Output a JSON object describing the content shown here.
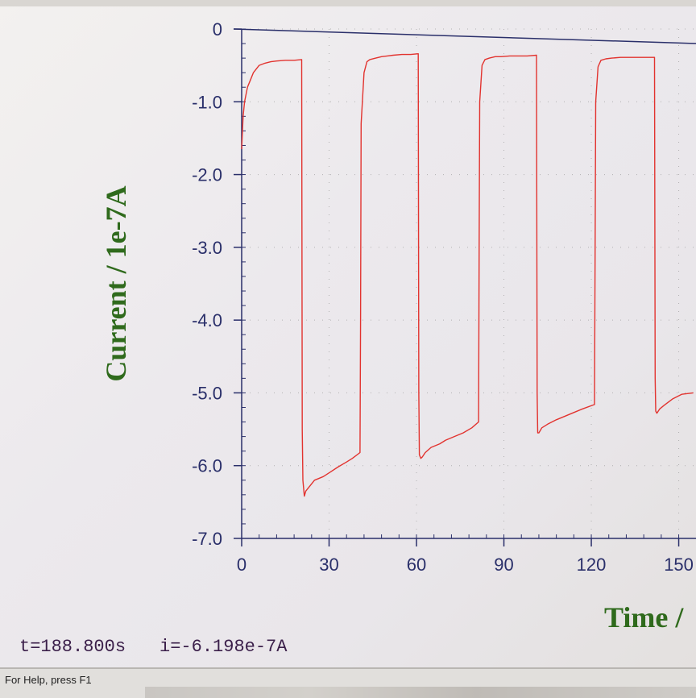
{
  "readout": {
    "time": "t=188.800s",
    "current": "i=-6.198e-7A"
  },
  "statusbar": {
    "help_text": "For Help, press F1"
  },
  "colors": {
    "trace": "#e2332f",
    "axis": "#2a2f6a",
    "axis_title": "#2f6a1c",
    "grid": "#9a9a9a"
  },
  "chart_data": {
    "type": "line",
    "title": "",
    "xlabel": "Time /",
    "ylabel": "Current / 1e-7A",
    "xlim": [
      0,
      155
    ],
    "ylim": [
      -7.0,
      0
    ],
    "xticks": [
      0,
      30,
      60,
      90,
      120,
      150
    ],
    "xtick_labels": [
      "0",
      "30",
      "60",
      "90",
      "120",
      "150"
    ],
    "yticks": [
      0,
      -1.0,
      -2.0,
      -3.0,
      -4.0,
      -5.0,
      -6.0,
      -7.0
    ],
    "ytick_labels": [
      "0",
      "-1.0",
      "-2.0",
      "-3.0",
      "-4.0",
      "-5.0",
      "-6.0",
      "-7.0"
    ],
    "grid": true,
    "series": [
      {
        "x": [
          0,
          0.5,
          1,
          2,
          3,
          4,
          6,
          8,
          10,
          12,
          15,
          18,
          20.6,
          20.8,
          21,
          21.5,
          22,
          23,
          25,
          28,
          30,
          33,
          36,
          38,
          40.6,
          40.8,
          41,
          42,
          43,
          44,
          46,
          48,
          50,
          52,
          55,
          58,
          60.6,
          60.8,
          61,
          61.5,
          62,
          63,
          65,
          68,
          70,
          73,
          76,
          79,
          81.3,
          81.5,
          81.7,
          82.5,
          83.5,
          85,
          87,
          89,
          92,
          95,
          98,
          101.2,
          101.4,
          101.6,
          102,
          103,
          105,
          108,
          111,
          114,
          117,
          121.1,
          121.3,
          121.5,
          122.3,
          123.3,
          125,
          127,
          130,
          133,
          136,
          139,
          141.7,
          141.9,
          142.1,
          142.5,
          143.5,
          145,
          148,
          151,
          155
        ],
        "values": [
          -1.65,
          -1.2,
          -1.0,
          -0.8,
          -0.7,
          -0.6,
          -0.5,
          -0.47,
          -0.45,
          -0.44,
          -0.43,
          -0.43,
          -0.42,
          -5.5,
          -6.2,
          -6.42,
          -6.35,
          -6.3,
          -6.2,
          -6.15,
          -6.1,
          -6.02,
          -5.95,
          -5.9,
          -5.82,
          -4.0,
          -1.3,
          -0.6,
          -0.45,
          -0.42,
          -0.4,
          -0.38,
          -0.37,
          -0.36,
          -0.35,
          -0.35,
          -0.34,
          -5.0,
          -5.85,
          -5.9,
          -5.88,
          -5.82,
          -5.75,
          -5.7,
          -5.65,
          -5.6,
          -5.55,
          -5.48,
          -5.4,
          -3.0,
          -1.0,
          -0.5,
          -0.42,
          -0.4,
          -0.38,
          -0.38,
          -0.37,
          -0.37,
          -0.37,
          -0.36,
          -5.0,
          -5.55,
          -5.55,
          -5.48,
          -5.43,
          -5.37,
          -5.32,
          -5.27,
          -5.22,
          -5.16,
          -3.2,
          -1.0,
          -0.52,
          -0.43,
          -0.41,
          -0.4,
          -0.39,
          -0.39,
          -0.39,
          -0.39,
          -0.39,
          -4.8,
          -5.25,
          -5.28,
          -5.22,
          -5.17,
          -5.08,
          -5.02,
          -5.0
        ]
      }
    ]
  }
}
